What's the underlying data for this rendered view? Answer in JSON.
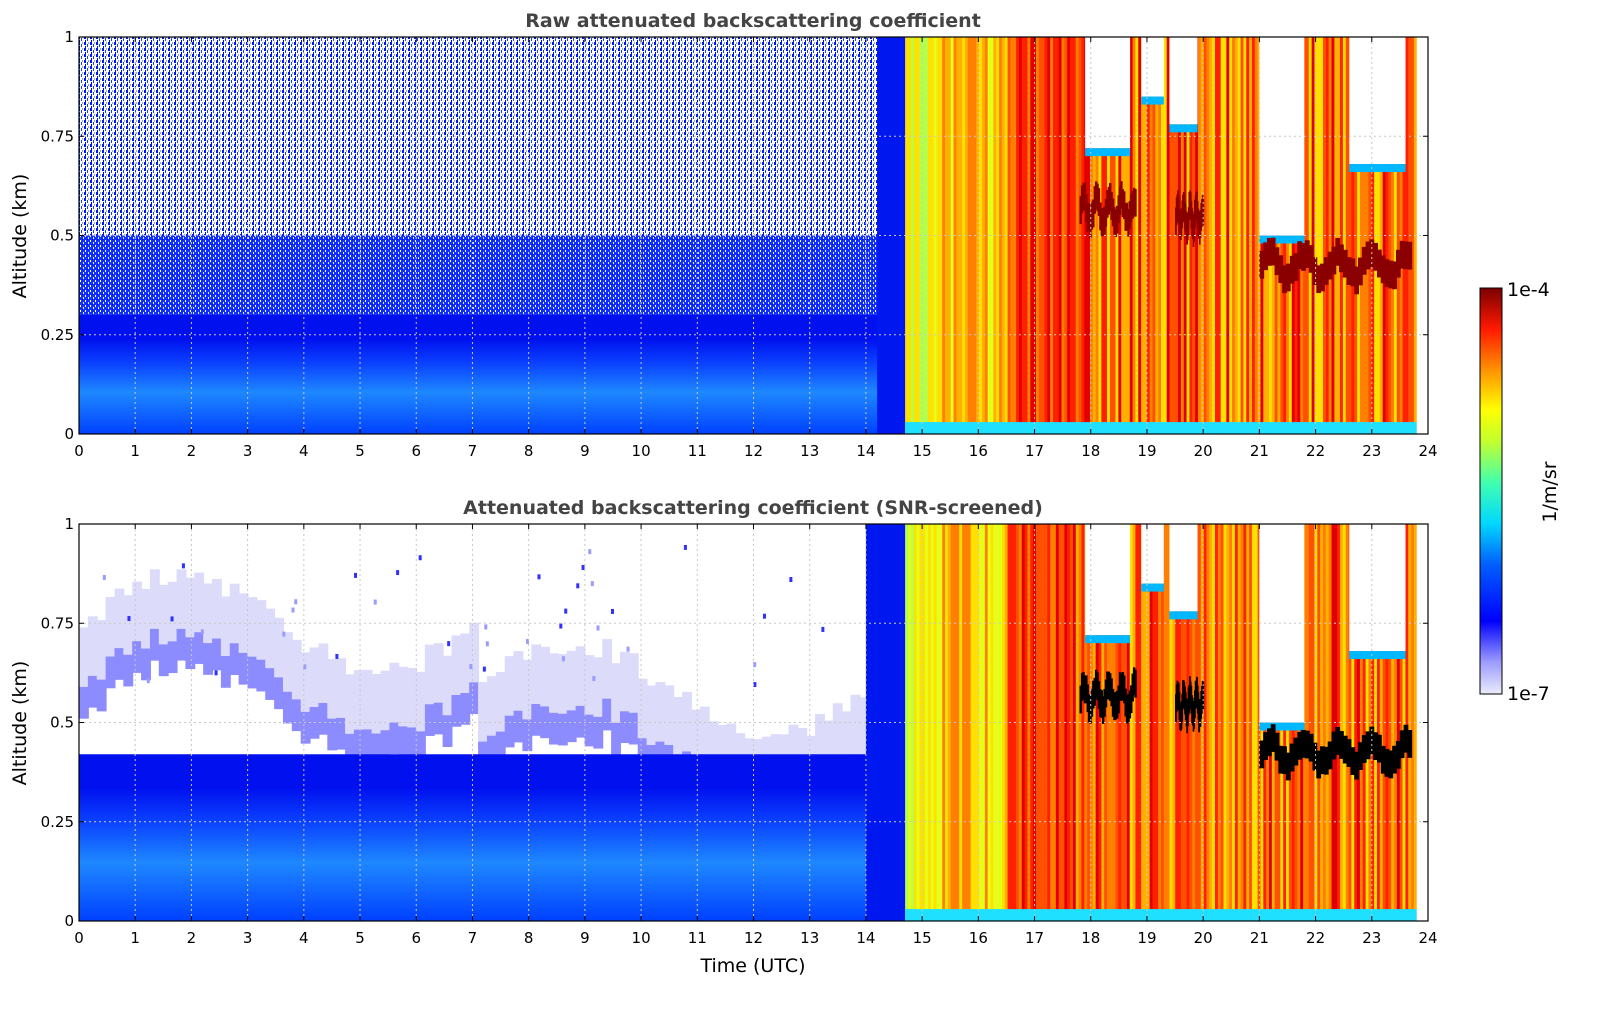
{
  "chart_data": [
    {
      "type": "heatmap",
      "title": "Raw attenuated backscattering coefficient",
      "xlabel": "",
      "ylabel": "Altitude (km)",
      "xlim": [
        0,
        24
      ],
      "ylim": [
        0,
        1
      ],
      "xticks": [
        "0",
        "1",
        "2",
        "3",
        "4",
        "5",
        "6",
        "7",
        "8",
        "9",
        "10",
        "11",
        "12",
        "13",
        "14",
        "15",
        "16",
        "17",
        "18",
        "19",
        "20",
        "21",
        "22",
        "23",
        "24"
      ],
      "yticks": [
        "0",
        "0.25",
        "0.5",
        "0.75",
        "1"
      ],
      "grid": true,
      "colorscale": "jet (log)",
      "valid_time_range": [
        0,
        23.8
      ],
      "description_of_values": "0–14.7 UTC: weak blue backscatter (~1e-6.5) below 0.3 km with noisy speckle above; 14.7–23.8 UTC: strong signal green-yellow-red, with dark-red cloud-base layers near 0.55–0.6 km (18–20 UTC) and 0.42 km (21–23.7 UTC)"
    },
    {
      "type": "heatmap",
      "title": "Attenuated backscattering coefficient (SNR-screened)",
      "xlabel": "Time (UTC)",
      "ylabel": "Altitude (km)",
      "xlim": [
        0,
        24
      ],
      "ylim": [
        0,
        1
      ],
      "xticks": [
        "0",
        "1",
        "2",
        "3",
        "4",
        "5",
        "6",
        "7",
        "8",
        "9",
        "10",
        "11",
        "12",
        "13",
        "14",
        "15",
        "16",
        "17",
        "18",
        "19",
        "20",
        "21",
        "22",
        "23",
        "24"
      ],
      "yticks": [
        "0",
        "0.25",
        "0.5",
        "0.75",
        "1"
      ],
      "grid": true,
      "colorscale": "jet (log)",
      "valid_time_range": [
        0,
        23.8
      ],
      "description_of_values": "Same as raw panel but low-SNR pixels removed; boundary-layer top ~0.45–0.55 km before 14 UTC; saturated values shown black at cloud bases"
    }
  ],
  "colorbar": {
    "label": "1/m/sr",
    "max_label": "1e-4",
    "min_label": "1e-7",
    "colors": [
      "#e6e6fa",
      "#0000ff",
      "#0080ff",
      "#00ffff",
      "#80ff80",
      "#ffff00",
      "#ff8000",
      "#ff0000",
      "#800000"
    ]
  }
}
